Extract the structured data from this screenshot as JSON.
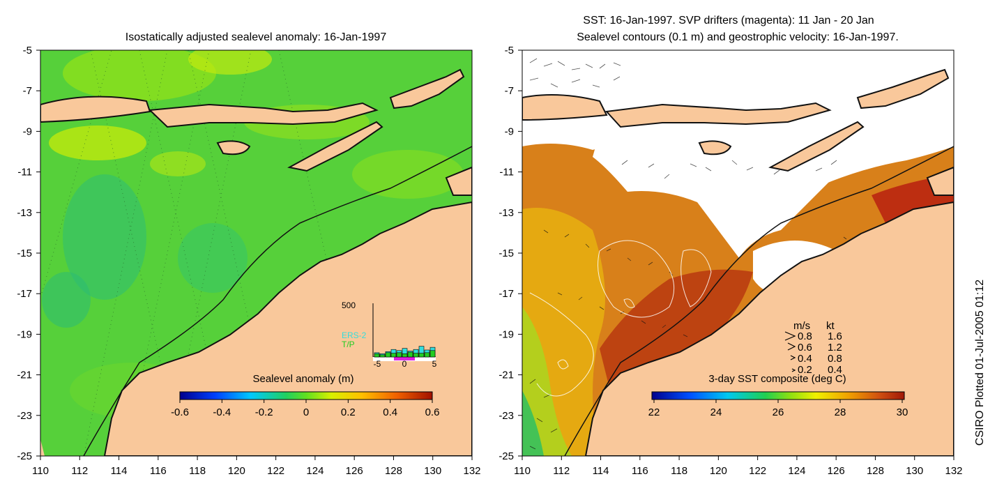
{
  "left_panel": {
    "title": "Isostatically adjusted sealevel anomaly: 16-Jan-1997",
    "colorbar": {
      "title": "Sealevel anomaly (m)",
      "ticks": [
        "-0.6",
        "-0.4",
        "-0.2",
        "0",
        "0.2",
        "0.4",
        "0.6"
      ],
      "range": [
        -0.6,
        0.6
      ]
    },
    "inset": {
      "ymax_label": "500",
      "legend": [
        "ERS-2",
        "T/P"
      ],
      "legend_colors": [
        "#33dddd",
        "#22cc22"
      ],
      "x_ticks": [
        "-5",
        "0",
        "5"
      ],
      "ers2_values": [
        40,
        30,
        50,
        70,
        60,
        80,
        55,
        70,
        100,
        65,
        90
      ],
      "tp_values": [
        30,
        20,
        40,
        35,
        40,
        30,
        45,
        35,
        35,
        40,
        60
      ],
      "ymax": 500
    }
  },
  "right_panel": {
    "title_line1": "SST: 16-Jan-1997. SVP drifters (magenta): 11 Jan - 20 Jan",
    "title_line2": "Sealevel contours (0.1 m) and geostrophic velocity: 16-Jan-1997.",
    "colorbar": {
      "title": "3-day SST composite (deg C)",
      "ticks": [
        "22",
        "24",
        "26",
        "28",
        "30"
      ],
      "range": [
        22,
        30
      ]
    },
    "velocity_legend": {
      "header_ms": "m/s",
      "header_kt": "kt",
      "rows": [
        {
          "ms": "0.8",
          "kt": "1.6"
        },
        {
          "ms": "0.6",
          "kt": "1.2"
        },
        {
          "ms": "0.4",
          "kt": "0.8"
        },
        {
          "ms": "0.2",
          "kt": "0.4"
        }
      ]
    }
  },
  "axes": {
    "x_ticks": [
      "110",
      "112",
      "114",
      "116",
      "118",
      "120",
      "122",
      "124",
      "126",
      "128",
      "130",
      "132"
    ],
    "y_ticks": [
      "-5",
      "-7",
      "-9",
      "-11",
      "-13",
      "-15",
      "-17",
      "-19",
      "-21",
      "-23",
      "-25"
    ],
    "lon_range": [
      110,
      132
    ],
    "lat_range": [
      -25,
      -5
    ]
  },
  "credit": "CSIRO Plotted 01-Jul-2005 01:12",
  "colors": {
    "land": "#f9c89b",
    "coast": "#111111",
    "sea_green": "#4ccc3c",
    "sst_warm": "#c8501a"
  }
}
